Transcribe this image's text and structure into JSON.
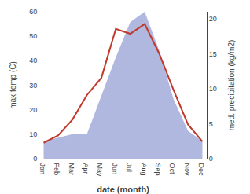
{
  "chart_data": {
    "type": "line",
    "categories": [
      "Jan",
      "Feb",
      "Mar",
      "Apr",
      "May",
      "Jun",
      "Jul",
      "Aug",
      "Sep",
      "Oct",
      "Nov",
      "Dec"
    ],
    "series": [
      {
        "type": "area",
        "color": "#b0b8e0",
        "axis": "y2",
        "values": [
          2.5,
          3.0,
          3.5,
          3.5,
          9.0,
          14.5,
          19.5,
          21.0,
          15.5,
          8.5,
          4.0,
          2.5
        ]
      },
      {
        "type": "line",
        "color": "#c0392b",
        "values": [
          6.5,
          9.5,
          16.0,
          26.0,
          33.0,
          53.0,
          51.0,
          55.0,
          43.0,
          28.0,
          14.0,
          7.0
        ]
      }
    ],
    "xlabel": "date (month)",
    "ylabel": "max temp (C)",
    "y2label": "med. precipitation (kg/m2)",
    "ylim": [
      0,
      60
    ],
    "yticks": [
      0,
      10,
      20,
      30,
      40,
      50,
      60
    ],
    "y2lim": [
      0,
      21
    ],
    "y2ticks": [
      0,
      5,
      10,
      15,
      20
    ],
    "grid": false
  }
}
